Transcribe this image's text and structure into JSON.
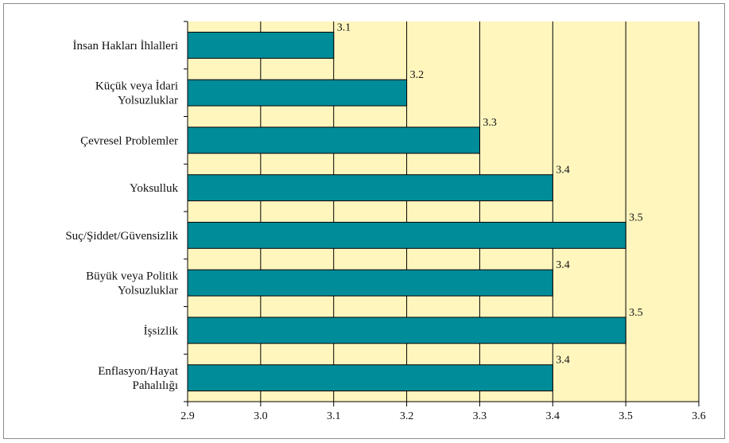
{
  "chart_data": {
    "type": "bar",
    "orientation": "horizontal",
    "categories": [
      [
        "İnsan Hakları İhlalleri"
      ],
      [
        "Küçük veya İdari",
        "Yolsuzluklar"
      ],
      [
        "Çevresel Problemler"
      ],
      [
        "Yoksulluk"
      ],
      [
        "Suç/Şiddet/Güvensizlik"
      ],
      [
        "Büyük veya Politik",
        "Yolsuzluklar"
      ],
      [
        "İşsizlik"
      ],
      [
        "Enflasyon/Hayat",
        "Pahalılığı"
      ]
    ],
    "values": [
      3.1,
      3.2,
      3.3,
      3.4,
      3.5,
      3.4,
      3.5,
      3.4
    ],
    "data_labels": [
      "3.1",
      "3.2",
      "3.3",
      "3.4",
      "3.5",
      "3.4",
      "3.5",
      "3.4"
    ],
    "xlim": [
      2.9,
      3.6
    ],
    "xticks": [
      "2.9",
      "3.0",
      "3.1",
      "3.2",
      "3.3",
      "3.4",
      "3.5",
      "3.6"
    ],
    "title": "",
    "xlabel": "",
    "ylabel": "",
    "grid": "vertical",
    "legend": "none",
    "colors": {
      "bar": "#008C99",
      "bar_outline": "#000000",
      "plot_background": "#FFF6BE",
      "grid": "#000000"
    }
  }
}
